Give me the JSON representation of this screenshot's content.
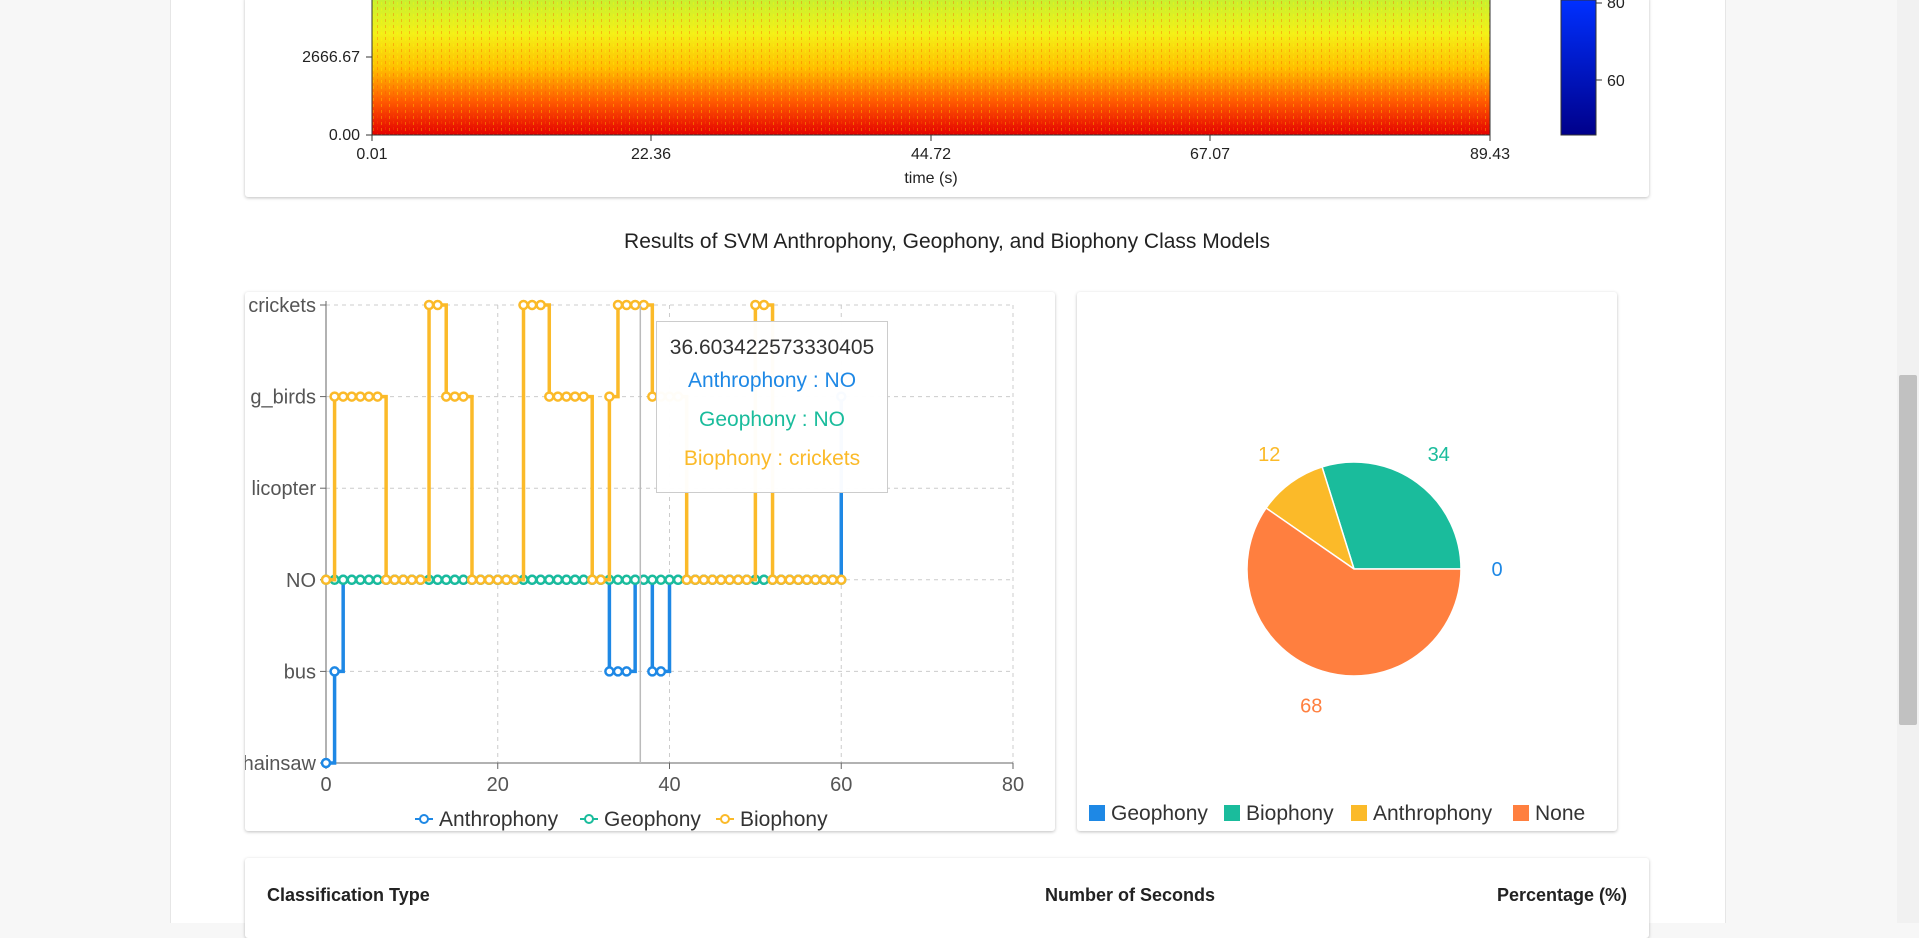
{
  "spectrogram": {
    "y_ticks": [
      "2666.67",
      "0.00"
    ],
    "x_ticks": [
      "0.01",
      "22.36",
      "44.72",
      "67.07",
      "89.43"
    ],
    "x_label": "time (s)",
    "colorbar_ticks": [
      "80",
      "60"
    ]
  },
  "section_title": "Results of SVM Anthrophony, Geophony, and Biophony Class Models",
  "line_chart": {
    "y_categories": [
      "crickets",
      "g_birds",
      "licopter",
      "NO",
      "bus",
      "hainsaw"
    ],
    "x_ticks": [
      "0",
      "20",
      "40",
      "60",
      "80"
    ],
    "legend": [
      "Anthrophony",
      "Geophony",
      "Biophony"
    ],
    "colors": {
      "Anthrophony": "#1e88e5",
      "Geophony": "#1abc9c",
      "Biophony": "#fbba29"
    }
  },
  "tooltip": {
    "title": "36.603422573330405",
    "anthrophony": "Anthrophony : NO",
    "geophony": "Geophony : NO",
    "biophony": "Biophony : crickets"
  },
  "chart_data": [
    {
      "type": "line",
      "x_range": [
        0,
        80
      ],
      "y_categories": [
        "chainsaw",
        "bus",
        "NO",
        "helicopter",
        "singing_birds",
        "crickets"
      ],
      "series": [
        {
          "name": "Anthrophony",
          "points": [
            [
              0,
              "chainsaw"
            ],
            [
              1,
              "bus"
            ],
            [
              2,
              "NO"
            ],
            [
              33,
              "bus"
            ],
            [
              36,
              "NO"
            ],
            [
              38,
              "bus"
            ],
            [
              40,
              "NO"
            ],
            [
              60,
              "NO"
            ],
            [
              60,
              "singing_birds"
            ]
          ]
        },
        {
          "name": "Geophony",
          "points": [
            [
              0,
              "NO"
            ],
            [
              60,
              "NO"
            ]
          ]
        },
        {
          "name": "Biophony",
          "points": [
            [
              0,
              "NO"
            ],
            [
              1,
              "singing_birds"
            ],
            [
              7,
              "NO"
            ],
            [
              12,
              "crickets"
            ],
            [
              14,
              "singing_birds"
            ],
            [
              17,
              "NO"
            ],
            [
              23,
              "crickets"
            ],
            [
              26,
              "singing_birds"
            ],
            [
              31,
              "NO"
            ],
            [
              33,
              "singing_birds"
            ],
            [
              34,
              "crickets"
            ],
            [
              38,
              "singing_birds"
            ],
            [
              42,
              "NO"
            ],
            [
              50,
              "crickets"
            ],
            [
              52,
              "NO"
            ],
            [
              60,
              "NO"
            ]
          ]
        }
      ]
    },
    {
      "type": "pie",
      "labels": [
        "Geophony",
        "Biophony",
        "Anthrophony",
        "None"
      ],
      "values": [
        0,
        34,
        12,
        68
      ],
      "colors": [
        "#1e88e5",
        "#1abc9c",
        "#fbba29",
        "#ff7f3f"
      ]
    }
  ],
  "table": {
    "headers": [
      "Classification Type",
      "Number of Seconds",
      "Percentage (%)"
    ]
  }
}
